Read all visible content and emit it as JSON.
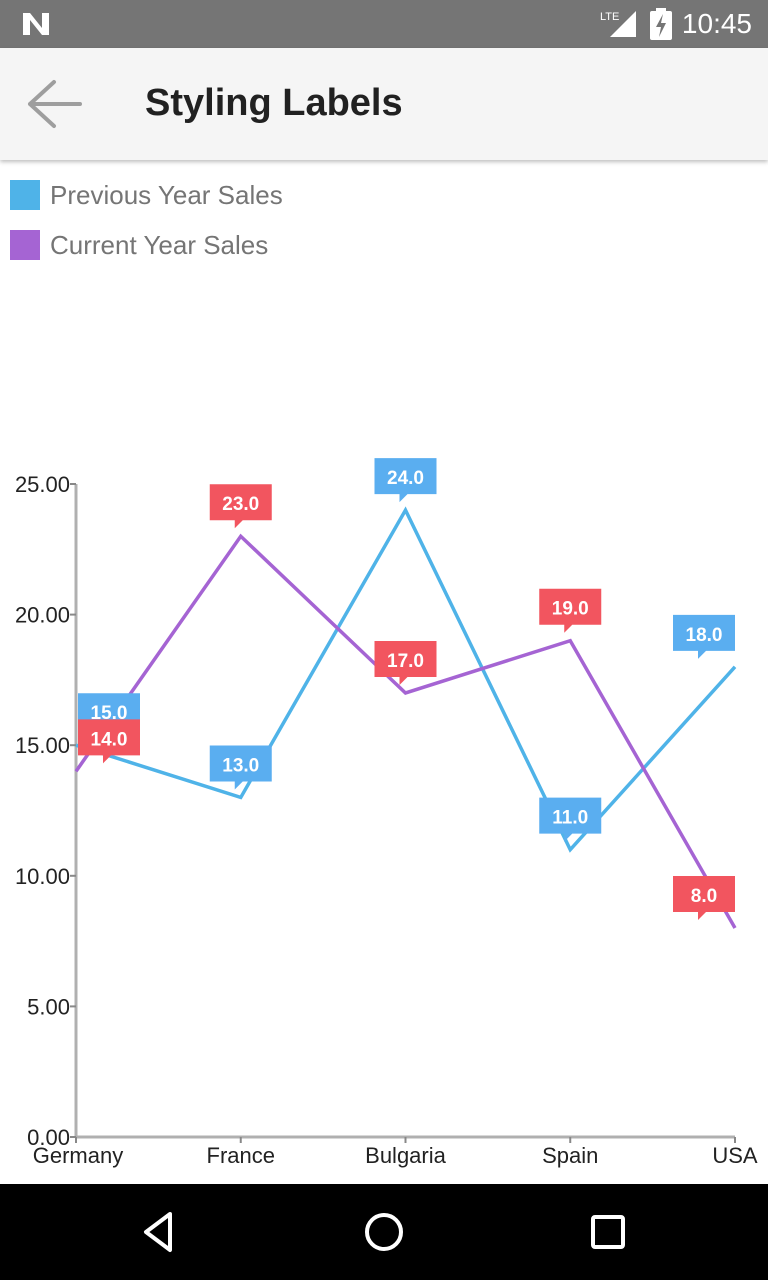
{
  "status_bar": {
    "time": "10:45",
    "network": "LTE",
    "icons": [
      "notification-n-icon",
      "signal-icon",
      "battery-charging-icon"
    ]
  },
  "app_bar": {
    "title": "Styling Labels",
    "back_icon": "arrow-back-icon"
  },
  "legend": {
    "items": [
      {
        "label": "Previous Year Sales",
        "color": "#4fb3e8"
      },
      {
        "label": "Current Year Sales",
        "color": "#a564d3"
      }
    ]
  },
  "chart_data": {
    "type": "line",
    "categories": [
      "Germany",
      "France",
      "Bulgaria",
      "Spain",
      "USA"
    ],
    "series": [
      {
        "name": "Previous Year Sales",
        "values": [
          15.0,
          13.0,
          24.0,
          11.0,
          18.0
        ],
        "color": "#4fb3e8",
        "label_color": "#5aaef0",
        "labels": [
          "15.0",
          "13.0",
          "24.0",
          "11.0",
          "18.0"
        ]
      },
      {
        "name": "Current Year Sales",
        "values": [
          14.0,
          23.0,
          17.0,
          19.0,
          8.0
        ],
        "color": "#a564d3",
        "label_color": "#f2555f",
        "labels": [
          "14.0",
          "23.0",
          "17.0",
          "19.0",
          "8.0"
        ]
      }
    ],
    "ylim": [
      0,
      25
    ],
    "yticks": [
      0,
      5,
      10,
      15,
      20,
      25
    ],
    "ytick_labels": [
      "0.00",
      "5.00",
      "10.00",
      "15.00",
      "20.00",
      "25.00"
    ],
    "grid": false,
    "legend_position": "top-left"
  },
  "nav_bar": {
    "icons": [
      "back-triangle-icon",
      "home-circle-icon",
      "recents-square-icon"
    ]
  }
}
